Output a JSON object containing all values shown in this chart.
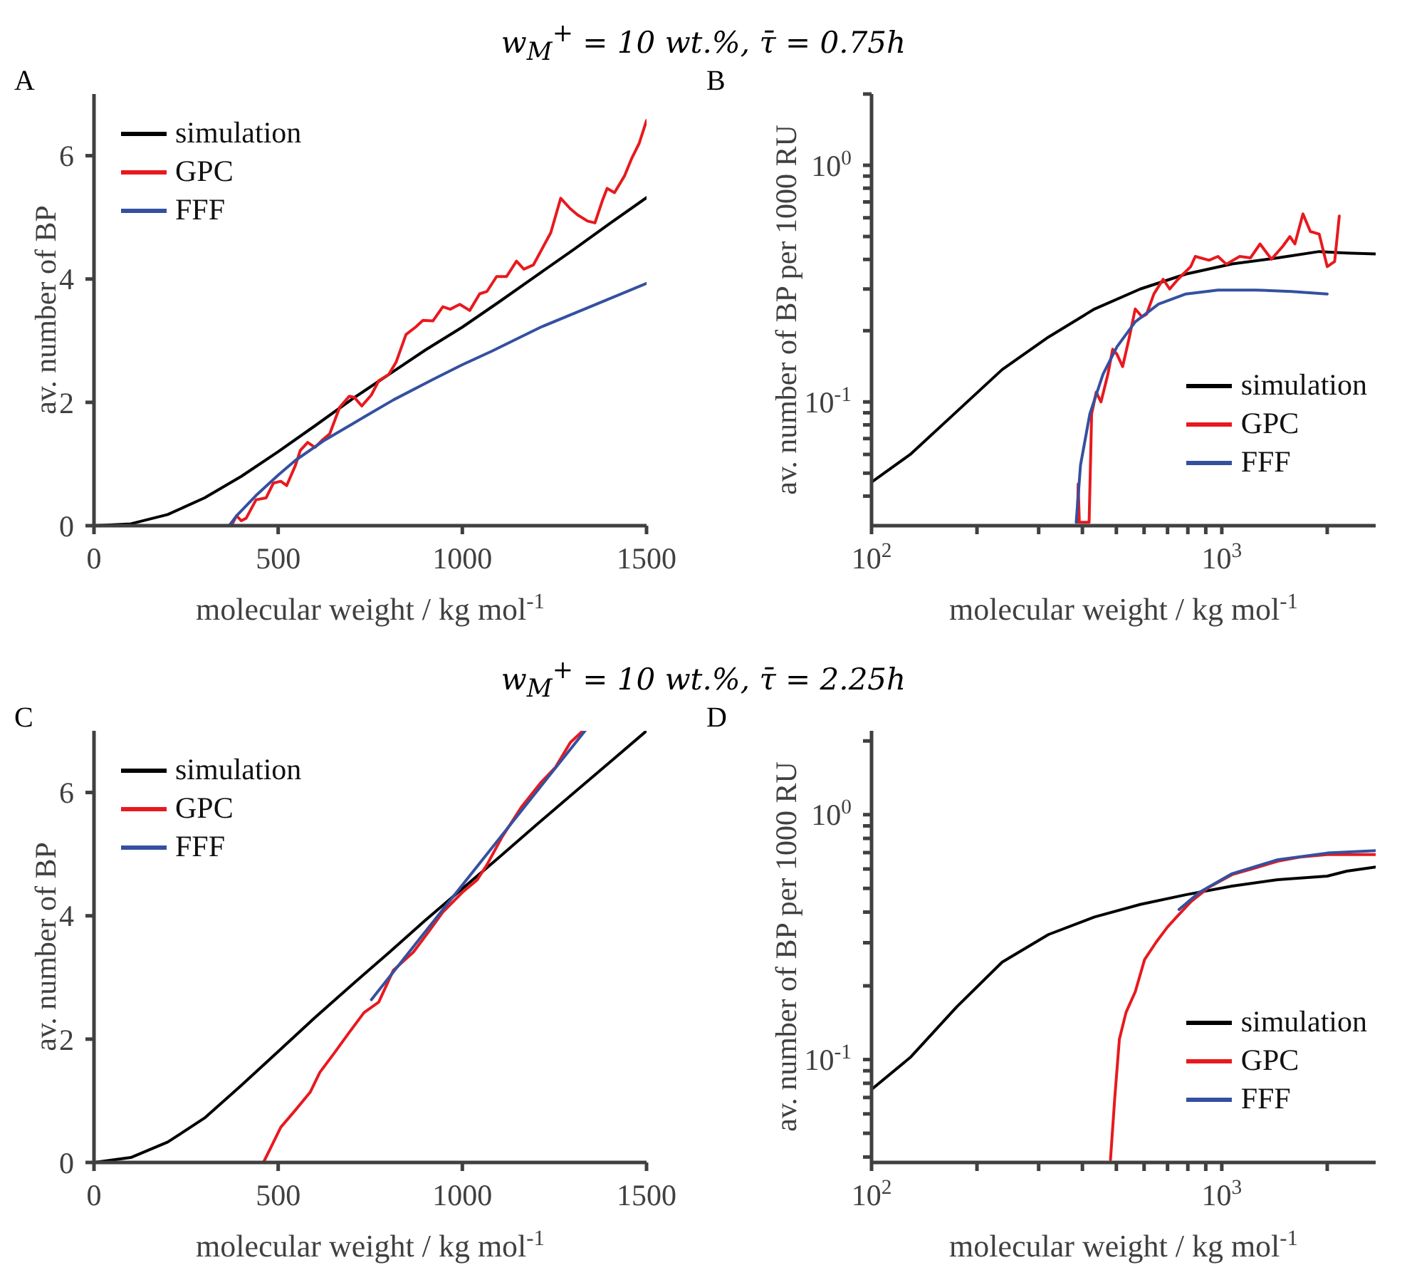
{
  "chart_data": [
    {
      "type": "line",
      "title": "w$_{M}$$^{+}$ = 10 wt.%, τ̄ = 0.75h",
      "annotations": [
        "A"
      ],
      "xlabel": "molecular weight / kg mol$^{-1}$",
      "ylabel": "av. number of BP",
      "xlim": [
        0,
        1500
      ],
      "xticks": [
        0,
        500,
        1000,
        1500
      ],
      "ylim": [
        0,
        7
      ],
      "yticks": [
        0,
        2,
        4,
        6
      ],
      "legend": "top left",
      "series": [
        {
          "name": "simulation",
          "color": "#000000",
          "x": [
            0,
            100,
            200,
            300,
            400,
            500,
            600,
            700,
            800,
            900,
            1000,
            1100,
            1200,
            1300,
            1400,
            1500
          ],
          "values": [
            0,
            0.03,
            0.18,
            0.45,
            0.8,
            1.2,
            1.62,
            2.05,
            2.45,
            2.85,
            3.22,
            3.63,
            4.05,
            4.47,
            4.9,
            5.32
          ]
        },
        {
          "name": "GPC",
          "color": "#e8191e",
          "x": [
            373,
            387,
            400,
            413,
            440,
            467,
            487,
            507,
            523,
            547,
            560,
            580,
            600,
            620,
            640,
            667,
            693,
            707,
            727,
            753,
            773,
            800,
            820,
            847,
            873,
            893,
            920,
            947,
            967,
            993,
            1020,
            1047,
            1067,
            1093,
            1120,
            1147,
            1167,
            1193,
            1220,
            1240,
            1267,
            1293,
            1313,
            1340,
            1360,
            1380,
            1393,
            1413,
            1440,
            1460,
            1480,
            1500
          ],
          "values": [
            0,
            0.16,
            0.08,
            0.12,
            0.42,
            0.45,
            0.69,
            0.72,
            0.65,
            0.98,
            1.22,
            1.35,
            1.27,
            1.39,
            1.49,
            1.92,
            2.1,
            2.08,
            1.94,
            2.12,
            2.35,
            2.45,
            2.65,
            3.1,
            3.22,
            3.33,
            3.32,
            3.55,
            3.51,
            3.59,
            3.49,
            3.76,
            3.8,
            4.04,
            4.04,
            4.29,
            4.16,
            4.23,
            4.53,
            4.75,
            5.31,
            5.14,
            5.04,
            4.94,
            4.91,
            5.27,
            5.47,
            5.4,
            5.67,
            5.96,
            6.2,
            6.57
          ]
        },
        {
          "name": "FFF",
          "color": "#3450a0",
          "x": [
            0,
            367,
            387,
            440,
            500,
            547,
            627,
            707,
            813,
            920,
            1000,
            1080,
            1213,
            1347,
            1500
          ],
          "values": [
            0,
            0,
            0.16,
            0.49,
            0.82,
            1.06,
            1.39,
            1.67,
            2.04,
            2.37,
            2.61,
            2.83,
            3.22,
            3.55,
            3.93
          ]
        }
      ]
    },
    {
      "type": "line",
      "annotations": [
        "B"
      ],
      "xlabel": "molecular weight / kg mol$^{-1}$",
      "ylabel": "av. number of BP per 1000 RU",
      "log": "xy",
      "xlim": [
        100,
        2750
      ],
      "xticks": [
        {
          "value": 100,
          "label": "10$^{2}$"
        },
        {
          "value": 200,
          "label": null
        },
        {
          "value": 300,
          "label": null
        },
        {
          "value": 400,
          "label": null
        },
        {
          "value": 500,
          "label": null
        },
        {
          "value": 600,
          "label": null
        },
        {
          "value": 700,
          "label": null
        },
        {
          "value": 800,
          "label": null
        },
        {
          "value": 900,
          "label": null
        },
        {
          "value": 1000,
          "label": "10$^{3}$"
        },
        {
          "value": 2000,
          "label": null
        }
      ],
      "ylim": [
        0.03,
        2
      ],
      "yticks": [
        {
          "value": 0.04,
          "label": null
        },
        {
          "value": 0.05,
          "label": null
        },
        {
          "value": 0.06,
          "label": null
        },
        {
          "value": 0.07,
          "label": null
        },
        {
          "value": 0.08,
          "label": null
        },
        {
          "value": 0.09,
          "label": null
        },
        {
          "value": 0.1,
          "label": "10$^{-1}$"
        },
        {
          "value": 0.2,
          "label": null
        },
        {
          "value": 0.3,
          "label": null
        },
        {
          "value": 0.4,
          "label": null
        },
        {
          "value": 0.5,
          "label": null
        },
        {
          "value": 0.6,
          "label": null
        },
        {
          "value": 0.7,
          "label": null
        },
        {
          "value": 0.8,
          "label": null
        },
        {
          "value": 0.9,
          "label": null
        },
        {
          "value": 1,
          "label": "10$^{0}$"
        },
        {
          "value": 2,
          "label": null
        }
      ],
      "legend": "bottom right",
      "series": [
        {
          "name": "simulation",
          "color": "#000000",
          "x": [
            100,
            129,
            175,
            236,
            320,
            433,
            585,
            790,
            1070,
            1445,
            1897,
            2275,
            2750
          ],
          "values": [
            0.0458,
            0.06,
            0.091,
            0.137,
            0.188,
            0.247,
            0.3,
            0.347,
            0.383,
            0.406,
            0.432,
            0.426,
            0.422
          ]
        },
        {
          "name": "GPC",
          "color": "#e8191e",
          "x": [
            387,
            389,
            392,
            418,
            425,
            438,
            452,
            473,
            488,
            502,
            521,
            543,
            566,
            592,
            610,
            640,
            680,
            710,
            750,
            815,
            840,
            920,
            975,
            1030,
            1125,
            1207,
            1286,
            1386,
            1492,
            1565,
            1617,
            1705,
            1790,
            1897,
            2000,
            2100,
            2165
          ],
          "values": [
            0.031,
            0.045,
            0.031,
            0.031,
            0.089,
            0.11,
            0.1,
            0.131,
            0.167,
            0.159,
            0.141,
            0.184,
            0.247,
            0.229,
            0.235,
            0.286,
            0.33,
            0.3,
            0.33,
            0.373,
            0.412,
            0.397,
            0.412,
            0.382,
            0.412,
            0.406,
            0.465,
            0.401,
            0.454,
            0.5,
            0.465,
            0.623,
            0.525,
            0.512,
            0.373,
            0.392,
            0.61
          ]
        },
        {
          "name": "FFF",
          "color": "#3450a0",
          "x": [
            384,
            395,
            420,
            458,
            502,
            566,
            660,
            790,
            975,
            1250,
            1582,
            2000
          ],
          "values": [
            0.031,
            0.054,
            0.089,
            0.131,
            0.171,
            0.218,
            0.259,
            0.286,
            0.297,
            0.297,
            0.293,
            0.286
          ]
        }
      ]
    },
    {
      "type": "line",
      "title": "w$_{M}$$^{+}$ = 10 wt.%, τ̄ = 2.25h",
      "annotations": [
        "C"
      ],
      "xlabel": "molecular weight / kg mol$^{-1}$",
      "ylabel": "av. number of BP",
      "xlim": [
        0,
        1500
      ],
      "xticks": [
        0,
        500,
        1000,
        1500
      ],
      "ylim": [
        0,
        7
      ],
      "yticks": [
        0,
        2,
        4,
        6
      ],
      "legend": "top left",
      "series": [
        {
          "name": "simulation",
          "color": "#000000",
          "x": [
            0,
            100,
            200,
            300,
            400,
            500,
            600,
            700,
            800,
            900,
            1000,
            1100,
            1200,
            1300,
            1400,
            1500
          ],
          "values": [
            0,
            0.08,
            0.33,
            0.72,
            1.25,
            1.8,
            2.35,
            2.88,
            3.4,
            3.93,
            4.44,
            4.95,
            5.47,
            5.98,
            6.49,
            7
          ]
        },
        {
          "name": "GPC",
          "color": "#e8191e",
          "x": [
            107,
            460,
            480,
            507,
            547,
            587,
            613,
            653,
            693,
            733,
            773,
            813,
            867,
            907,
            947,
            1000,
            1040,
            1067,
            1107,
            1160,
            1213,
            1253,
            1293,
            1327
          ],
          "values": [
            0,
            0,
            0.24,
            0.57,
            0.85,
            1.14,
            1.46,
            1.78,
            2.11,
            2.43,
            2.6,
            3.12,
            3.41,
            3.73,
            4.06,
            4.38,
            4.58,
            4.83,
            5.27,
            5.76,
            6.16,
            6.41,
            6.81,
            7
          ]
        },
        {
          "name": "FFF",
          "color": "#3450a0",
          "x": [
            753,
            1000,
            1333
          ],
          "values": [
            2.64,
            4.5,
            7
          ]
        }
      ]
    },
    {
      "type": "line",
      "annotations": [
        "D"
      ],
      "xlabel": "molecular weight / kg mol$^{-1}$",
      "ylabel": "av. number of BP per 1000 RU",
      "log": "xy",
      "xlim": [
        100,
        2750
      ],
      "xticks": [
        {
          "value": 100,
          "label": "10$^{2}$"
        },
        {
          "value": 200,
          "label": null
        },
        {
          "value": 300,
          "label": null
        },
        {
          "value": 400,
          "label": null
        },
        {
          "value": 500,
          "label": null
        },
        {
          "value": 600,
          "label": null
        },
        {
          "value": 700,
          "label": null
        },
        {
          "value": 800,
          "label": null
        },
        {
          "value": 900,
          "label": null
        },
        {
          "value": 1000,
          "label": "10$^{3}$"
        },
        {
          "value": 2000,
          "label": null
        }
      ],
      "ylim": [
        0.038,
        2.2
      ],
      "yticks": [
        {
          "value": 0.04,
          "label": null
        },
        {
          "value": 0.05,
          "label": null
        },
        {
          "value": 0.06,
          "label": null
        },
        {
          "value": 0.07,
          "label": null
        },
        {
          "value": 0.08,
          "label": null
        },
        {
          "value": 0.09,
          "label": null
        },
        {
          "value": 0.1,
          "label": "10$^{-1}$"
        },
        {
          "value": 0.2,
          "label": null
        },
        {
          "value": 0.3,
          "label": null
        },
        {
          "value": 0.4,
          "label": null
        },
        {
          "value": 0.5,
          "label": null
        },
        {
          "value": 0.6,
          "label": null
        },
        {
          "value": 0.7,
          "label": null
        },
        {
          "value": 0.8,
          "label": null
        },
        {
          "value": 0.9,
          "label": null
        },
        {
          "value": 1,
          "label": "10$^{0}$"
        },
        {
          "value": 2,
          "label": null
        }
      ],
      "legend": "bottom right",
      "series": [
        {
          "name": "simulation",
          "color": "#000000",
          "x": [
            100,
            129,
            175,
            236,
            320,
            433,
            585,
            790,
            1070,
            1445,
            2000,
            2275,
            2750
          ],
          "values": [
            0.0755,
            0.102,
            0.164,
            0.25,
            0.324,
            0.382,
            0.43,
            0.471,
            0.511,
            0.543,
            0.561,
            0.588,
            0.611
          ]
        },
        {
          "name": "GPC",
          "color": "#e8191e",
          "x": [
            481,
            495,
            510,
            533,
            566,
            602,
            650,
            700,
            743,
            815,
            920,
            1070,
            1240,
            1445,
            1670,
            2000,
            2750
          ],
          "values": [
            0.039,
            0.0703,
            0.121,
            0.156,
            0.189,
            0.256,
            0.302,
            0.348,
            0.382,
            0.44,
            0.506,
            0.569,
            0.605,
            0.646,
            0.671,
            0.687,
            0.687
          ]
        },
        {
          "name": "FFF",
          "color": "#3450a0",
          "x": [
            755,
            865,
            1070,
            1445,
            2000,
            2750
          ],
          "values": [
            0.41,
            0.483,
            0.574,
            0.655,
            0.697,
            0.713
          ]
        }
      ]
    }
  ]
}
